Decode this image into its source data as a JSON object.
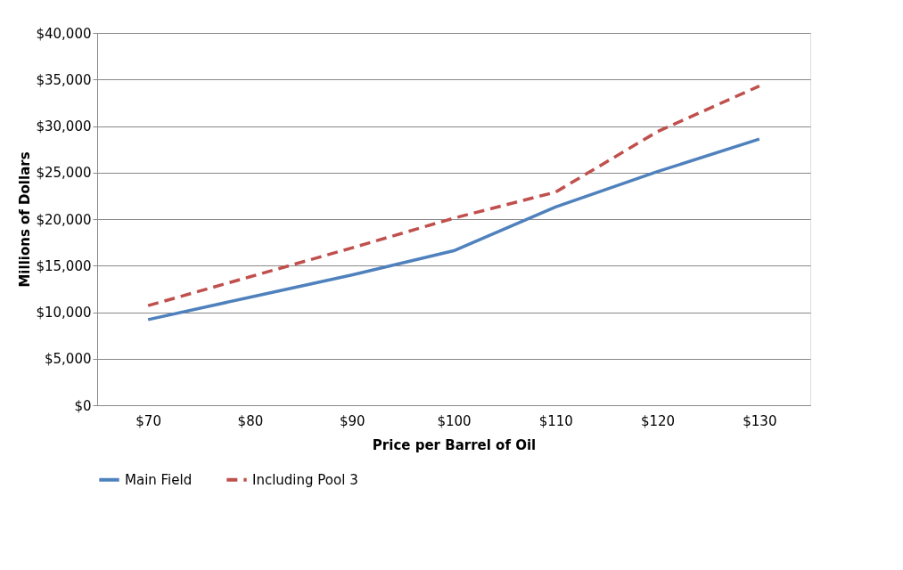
{
  "chart_data": {
    "type": "line",
    "xlabel": "Price per Barrel of Oil",
    "ylabel": "Millions of Dollars",
    "categories": [
      "$70",
      "$80",
      "$90",
      "$100",
      "$110",
      "$120",
      "$130"
    ],
    "series": [
      {
        "name": "Main Field",
        "color": "#4f81bd",
        "line_style": "solid",
        "values": [
          9200,
          11600,
          14000,
          16600,
          21300,
          25100,
          28600
        ]
      },
      {
        "name": "Including Pool 3",
        "color": "#c0504d",
        "line_style": "dashed",
        "values": [
          10700,
          13800,
          16900,
          20100,
          22900,
          29400,
          34300
        ]
      }
    ],
    "ylim": [
      0,
      40000
    ],
    "yticks": [
      {
        "value": 0,
        "label": "$0"
      },
      {
        "value": 5000,
        "label": "$5,000"
      },
      {
        "value": 10000,
        "label": "$10,000"
      },
      {
        "value": 15000,
        "label": "$15,000"
      },
      {
        "value": 20000,
        "label": "$20,000"
      },
      {
        "value": 25000,
        "label": "$25,000"
      },
      {
        "value": 30000,
        "label": "$30,000"
      },
      {
        "value": 35000,
        "label": "$35,000"
      },
      {
        "value": 40000,
        "label": "$40,000"
      }
    ],
    "grid": "y",
    "legend": "bottom",
    "marker": "none"
  }
}
